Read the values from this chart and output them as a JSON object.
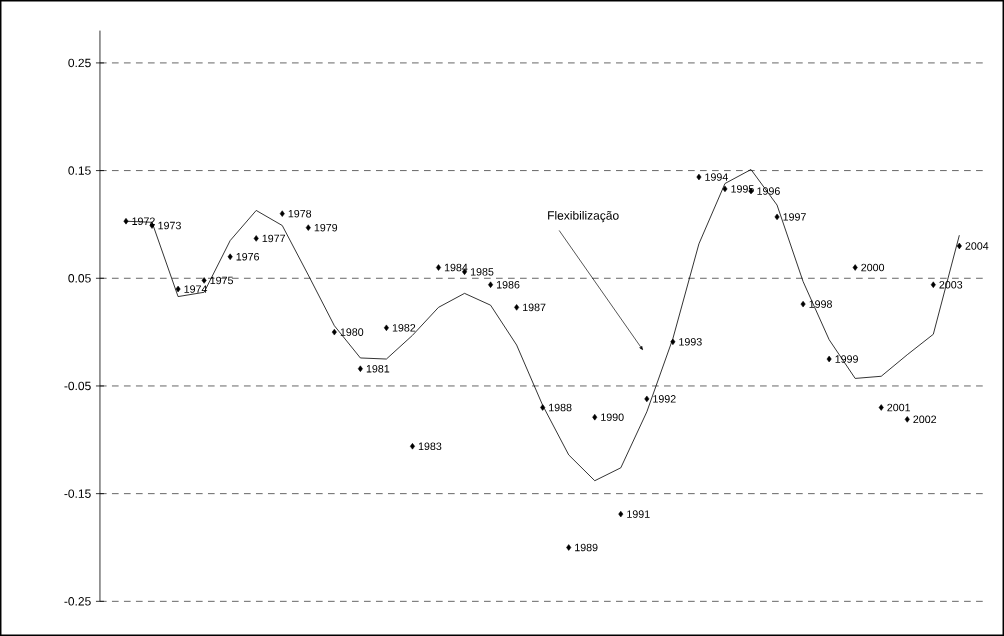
{
  "chart_data": {
    "type": "scatter",
    "categories": [
      null,
      null,
      null,
      null,
      null,
      null,
      null,
      null,
      null,
      null,
      null,
      null,
      null,
      null,
      null,
      null,
      null,
      null,
      null,
      null,
      null,
      null,
      null,
      null,
      null,
      null,
      null,
      null,
      null,
      null,
      null,
      null,
      null
    ],
    "series": [
      {
        "color": "#000000",
        "marker": "diamond",
        "values": [
          0.103,
          0.099,
          0.04,
          0.048,
          0.07,
          0.087,
          0.11,
          0.097,
          0.0,
          -0.034,
          0.004,
          -0.106,
          0.06,
          0.056,
          0.044,
          0.023,
          -0.07,
          -0.2,
          -0.079,
          -0.169,
          -0.062,
          -0.009,
          0.144,
          0.133,
          0.131,
          0.107,
          0.026,
          -0.025,
          0.06,
          -0.07,
          -0.081,
          0.044,
          0.08
        ]
      },
      {
        "type": "line",
        "color": "#000000",
        "marker": "none",
        "line_style": "solid",
        "values": [
          0.103,
          0.102,
          0.033,
          0.037,
          0.085,
          0.113,
          0.099,
          0.053,
          0.006,
          -0.024,
          -0.025,
          -0.003,
          0.023,
          0.036,
          0.025,
          -0.012,
          -0.068,
          -0.114,
          -0.138,
          -0.126,
          -0.074,
          -0.006,
          0.082,
          0.138,
          0.151,
          0.118,
          0.047,
          -0.007,
          -0.043,
          -0.041,
          -0.021,
          -0.002,
          0.09
        ]
      }
    ],
    "annotations": [
      "Flexibilização",
      "1972",
      "1973",
      "1974",
      "1975",
      "1976",
      "1977",
      "1978",
      "1979",
      "1980",
      "1981",
      "1982",
      "1983",
      "1984",
      "1985",
      "1986",
      "1987",
      "1988",
      "1989",
      "1990",
      "1991",
      "1992",
      "1993",
      "1994",
      "1995",
      "1996",
      "1997",
      "1998",
      "1999",
      "2000",
      "2001",
      "2002",
      "2003",
      "2004"
    ],
    "ylim": [
      -0.25,
      0.28
    ],
    "yticks": [
      -0.25,
      -0.15,
      -0.05,
      0.05,
      0.15,
      0.25
    ],
    "tick_labels": "y",
    "grid": "y",
    "legend": false
  }
}
